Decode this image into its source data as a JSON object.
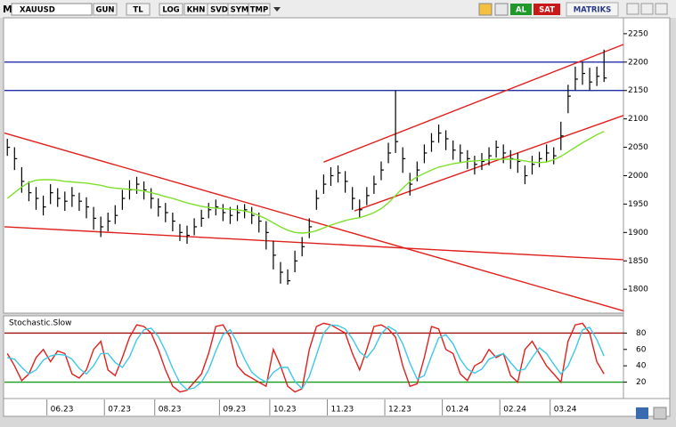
{
  "toolbar": {
    "logo": "M",
    "symbol": "XAUUSD",
    "buttons": [
      "GUN",
      "TL",
      "LOG",
      "KHN",
      "SVD",
      "SYM",
      "TMP"
    ],
    "trade": [
      "AL",
      "SAT"
    ],
    "brand": "MATRIKS"
  },
  "chart_data": [
    {
      "type": "ohlc",
      "xlim": [
        -0.4,
        85.7
      ],
      "ylim": [
        1758,
        2278
      ],
      "yticks": [
        1800,
        1850,
        1900,
        1950,
        2000,
        2050,
        2100,
        2150,
        2200,
        2250
      ],
      "ohlc": {
        "color": "#000000",
        "high": [
          2065,
          2050,
          2015,
          1990,
          1980,
          1965,
          1985,
          1978,
          1972,
          1980,
          1970,
          1962,
          1945,
          1928,
          1935,
          1948,
          1975,
          1992,
          1998,
          1990,
          1978,
          1960,
          1952,
          1935,
          1915,
          1912,
          1925,
          1940,
          1952,
          1958,
          1950,
          1945,
          1948,
          1950,
          1945,
          1935,
          1920,
          1885,
          1848,
          1835,
          1868,
          1892,
          1925,
          1975,
          2002,
          2015,
          2018,
          2008,
          1980,
          1958,
          1980,
          2000,
          2025,
          2058,
          2150,
          2050,
          2005,
          2025,
          2055,
          2075,
          2090,
          2080,
          2062,
          2055,
          2045,
          2035,
          2040,
          2050,
          2062,
          2055,
          2045,
          2040,
          2018,
          2035,
          2042,
          2055,
          2050,
          2095,
          2160,
          2192,
          2200,
          2190,
          2192,
          2222
        ],
        "low": [
          2035,
          2010,
          1970,
          1955,
          1940,
          1930,
          1950,
          1945,
          1938,
          1945,
          1938,
          1925,
          1905,
          1892,
          1902,
          1915,
          1940,
          1958,
          1968,
          1958,
          1942,
          1928,
          1918,
          1902,
          1885,
          1880,
          1895,
          1910,
          1925,
          1930,
          1920,
          1915,
          1920,
          1925,
          1915,
          1900,
          1870,
          1835,
          1810,
          1808,
          1830,
          1858,
          1890,
          1940,
          1968,
          1982,
          1988,
          1970,
          1940,
          1925,
          1948,
          1968,
          1992,
          2022,
          2040,
          2005,
          1965,
          1990,
          2022,
          2042,
          2058,
          2045,
          2028,
          2022,
          2012,
          2002,
          2010,
          2018,
          2032,
          2022,
          2012,
          2005,
          1985,
          2002,
          2015,
          2025,
          2020,
          2045,
          2110,
          2150,
          2160,
          2150,
          2158,
          2165
        ],
        "close": [
          2050,
          2030,
          1990,
          1970,
          1960,
          1945,
          1970,
          1960,
          1955,
          1965,
          1955,
          1945,
          1925,
          1910,
          1920,
          1930,
          1960,
          1975,
          1985,
          1975,
          1960,
          1945,
          1935,
          1920,
          1900,
          1895,
          1910,
          1925,
          1940,
          1945,
          1935,
          1930,
          1935,
          1940,
          1930,
          1920,
          1900,
          1860,
          1830,
          1815,
          1850,
          1875,
          1910,
          1960,
          1985,
          2000,
          2005,
          1990,
          1960,
          1940,
          1965,
          1985,
          2010,
          2040,
          2060,
          2030,
          1985,
          2010,
          2040,
          2060,
          2075,
          2065,
          2045,
          2040,
          2030,
          2020,
          2025,
          2035,
          2050,
          2040,
          2030,
          2025,
          2000,
          2020,
          2030,
          2040,
          2035,
          2070,
          2140,
          2170,
          2180,
          2165,
          2175,
          2172
        ]
      },
      "overlays": [
        {
          "color": "#7ee02a",
          "values": [
            1960,
            1970,
            1980,
            1988,
            1992,
            1993,
            1993,
            1992,
            1990,
            1989,
            1988,
            1987,
            1985,
            1983,
            1980,
            1978,
            1977,
            1976,
            1975,
            1973,
            1970,
            1967,
            1963,
            1960,
            1956,
            1952,
            1949,
            1946,
            1944,
            1943,
            1942,
            1941,
            1940,
            1938,
            1935,
            1930,
            1924,
            1917,
            1910,
            1904,
            1900,
            1899,
            1900,
            1903,
            1908,
            1913,
            1917,
            1921,
            1924,
            1926,
            1930,
            1935,
            1942,
            1952,
            1965,
            1978,
            1990,
            1998,
            2004,
            2010,
            2015,
            2018,
            2021,
            2023,
            2025,
            2026,
            2027,
            2028,
            2029,
            2029,
            2029,
            2028,
            2026,
            2024,
            2023,
            2024,
            2028,
            2034,
            2042,
            2050,
            2058,
            2065,
            2072,
            2078
          ]
        }
      ],
      "hlines": [
        {
          "color": "#1f2fa8",
          "value": 2200
        },
        {
          "color": "#1f2fa8",
          "value": 2150
        }
      ],
      "trendlines": [
        {
          "color": "#e0201c",
          "points": [
            [
              -0.4,
              2075
            ],
            [
              85.7,
              1762
            ]
          ]
        },
        {
          "color": "#e0201c",
          "points": [
            [
              -0.4,
              1910
            ],
            [
              85.7,
              1852
            ]
          ]
        },
        {
          "color": "#e0201c",
          "points": [
            [
              44,
              2024
            ],
            [
              85.7,
              2231
            ]
          ]
        },
        {
          "color": "#e0201c",
          "points": [
            [
              48.3,
              1938
            ],
            [
              85.7,
              2106
            ]
          ]
        }
      ]
    },
    {
      "type": "line",
      "title": "Stochastic.Slow",
      "xlim": [
        -0.4,
        85.7
      ],
      "ylim": [
        0,
        100
      ],
      "yticks": [
        20,
        40,
        60,
        80
      ],
      "xticks": [
        {
          "value": 6,
          "label": "06.23"
        },
        {
          "value": 14,
          "label": "07.23"
        },
        {
          "value": 21,
          "label": "08.23"
        },
        {
          "value": 30,
          "label": "09.23"
        },
        {
          "value": 37,
          "label": "10.23"
        },
        {
          "value": 45,
          "label": "11.23"
        },
        {
          "value": 53,
          "label": "12.23"
        },
        {
          "value": 61,
          "label": "01.24"
        },
        {
          "value": 69,
          "label": "02.24"
        },
        {
          "value": 76,
          "label": "03.24"
        }
      ],
      "series": [
        {
          "color": "#e0201c",
          "values": [
            55,
            40,
            22,
            30,
            50,
            60,
            45,
            58,
            55,
            30,
            25,
            35,
            60,
            70,
            35,
            28,
            50,
            75,
            90,
            88,
            80,
            60,
            35,
            15,
            8,
            10,
            20,
            30,
            55,
            88,
            90,
            75,
            40,
            30,
            25,
            20,
            15,
            60,
            40,
            15,
            8,
            12,
            60,
            88,
            92,
            90,
            85,
            80,
            55,
            35,
            60,
            88,
            90,
            85,
            75,
            40,
            15,
            18,
            50,
            88,
            85,
            60,
            55,
            30,
            22,
            40,
            45,
            60,
            50,
            55,
            28,
            20,
            60,
            70,
            55,
            40,
            30,
            20,
            70,
            90,
            92,
            80,
            45,
            30
          ]
        },
        {
          "color": "#3cc8e8",
          "values": [
            50,
            48,
            38,
            30,
            35,
            47,
            52,
            54,
            53,
            48,
            37,
            30,
            40,
            55,
            55,
            44,
            38,
            51,
            72,
            84,
            86,
            76,
            58,
            37,
            19,
            11,
            13,
            20,
            35,
            58,
            78,
            84,
            68,
            48,
            32,
            25,
            20,
            32,
            38,
            38,
            21,
            12,
            27,
            53,
            80,
            90,
            89,
            85,
            73,
            57,
            50,
            61,
            79,
            88,
            83,
            67,
            43,
            24,
            28,
            52,
            74,
            78,
            67,
            48,
            36,
            31,
            36,
            48,
            52,
            55,
            44,
            34,
            36,
            50,
            62,
            55,
            42,
            30,
            40,
            60,
            84,
            87,
            72,
            52
          ]
        }
      ],
      "hlines": [
        {
          "color": "#a01010",
          "value": 80
        },
        {
          "color": "#1a9a1a",
          "value": 20
        }
      ]
    }
  ]
}
